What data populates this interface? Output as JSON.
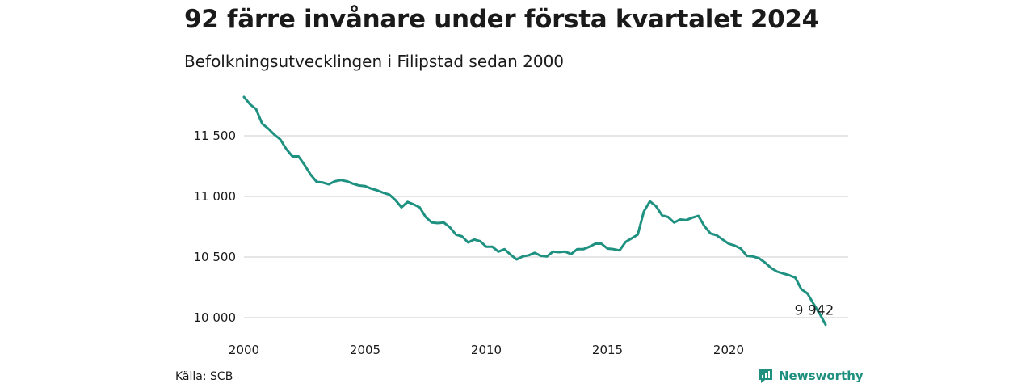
{
  "header": {
    "title": "92 färre invånare under första kvartalet 2024",
    "subtitle": "Befolkningsutvecklingen i Filipstad sedan 2000"
  },
  "footer": {
    "source": "Källa: SCB",
    "brand": "Newsworthy",
    "brand_icon": "newsworthy-logo-icon"
  },
  "colors": {
    "line": "#1f9180",
    "grid": "#dddddd",
    "brand": "#1f8f7f"
  },
  "chart_data": {
    "type": "line",
    "title": "92 färre invånare under första kvartalet 2024",
    "subtitle": "Befolkningsutvecklingen i Filipstad sedan 2000",
    "xlabel": "",
    "ylabel": "",
    "x_ticks": [
      "2000",
      "2005",
      "2010",
      "2015",
      "2020"
    ],
    "y_ticks": [
      10000,
      10500,
      11000,
      11500
    ],
    "y_tick_labels": [
      "10 000",
      "10 500",
      "11 000",
      "11 500"
    ],
    "ylim": [
      9920,
      11850
    ],
    "x_range": [
      "2000-03",
      "2024-03"
    ],
    "grid": "horizontal",
    "end_label": "9 942",
    "series": [
      {
        "x": [
          "2000-03",
          "2000-06",
          "2000-09",
          "2000-12",
          "2001-03",
          "2001-06",
          "2001-09",
          "2001-12",
          "2002-03",
          "2002-06",
          "2002-09",
          "2002-12",
          "2003-03",
          "2003-06",
          "2003-09",
          "2003-12",
          "2004-03",
          "2004-06",
          "2004-09",
          "2004-12",
          "2005-03",
          "2005-06",
          "2005-09",
          "2005-12",
          "2006-03",
          "2006-06",
          "2006-09",
          "2006-12",
          "2007-03",
          "2007-06",
          "2007-09",
          "2007-12",
          "2008-03",
          "2008-06",
          "2008-09",
          "2008-12",
          "2009-03",
          "2009-06",
          "2009-09",
          "2009-12",
          "2010-03",
          "2010-06",
          "2010-09",
          "2010-12",
          "2011-03",
          "2011-06",
          "2011-09",
          "2011-12",
          "2012-03",
          "2012-06",
          "2012-09",
          "2012-12",
          "2013-03",
          "2013-06",
          "2013-09",
          "2013-12",
          "2014-03",
          "2014-06",
          "2014-09",
          "2014-12",
          "2015-03",
          "2015-06",
          "2015-09",
          "2015-12",
          "2016-03",
          "2016-06",
          "2016-09",
          "2016-12",
          "2017-03",
          "2017-06",
          "2017-09",
          "2017-12",
          "2018-03",
          "2018-06",
          "2018-09",
          "2018-12",
          "2019-03",
          "2019-06",
          "2019-09",
          "2019-12",
          "2020-03",
          "2020-06",
          "2020-09",
          "2020-12",
          "2021-03",
          "2021-06",
          "2021-09",
          "2021-12",
          "2022-03",
          "2022-06",
          "2022-09",
          "2022-12",
          "2023-03",
          "2023-06",
          "2023-09",
          "2023-12",
          "2024-03"
        ],
        "values": [
          11820,
          11760,
          11720,
          11600,
          11560,
          11510,
          11470,
          11390,
          11330,
          11330,
          11260,
          11180,
          11120,
          11115,
          11100,
          11125,
          11135,
          11125,
          11105,
          11090,
          11085,
          11065,
          11050,
          11030,
          11015,
          10970,
          10910,
          10955,
          10935,
          10910,
          10830,
          10785,
          10780,
          10785,
          10745,
          10685,
          10670,
          10620,
          10645,
          10630,
          10585,
          10585,
          10545,
          10565,
          10520,
          10480,
          10505,
          10515,
          10535,
          10510,
          10505,
          10545,
          10540,
          10545,
          10525,
          10565,
          10565,
          10585,
          10610,
          10610,
          10570,
          10565,
          10555,
          10625,
          10655,
          10685,
          10875,
          10960,
          10920,
          10845,
          10830,
          10785,
          10810,
          10805,
          10825,
          10840,
          10755,
          10695,
          10680,
          10645,
          10610,
          10595,
          10570,
          10510,
          10505,
          10490,
          10455,
          10410,
          10380,
          10365,
          10350,
          10330,
          10235,
          10200,
          10115,
          10035,
          9942
        ]
      }
    ]
  }
}
